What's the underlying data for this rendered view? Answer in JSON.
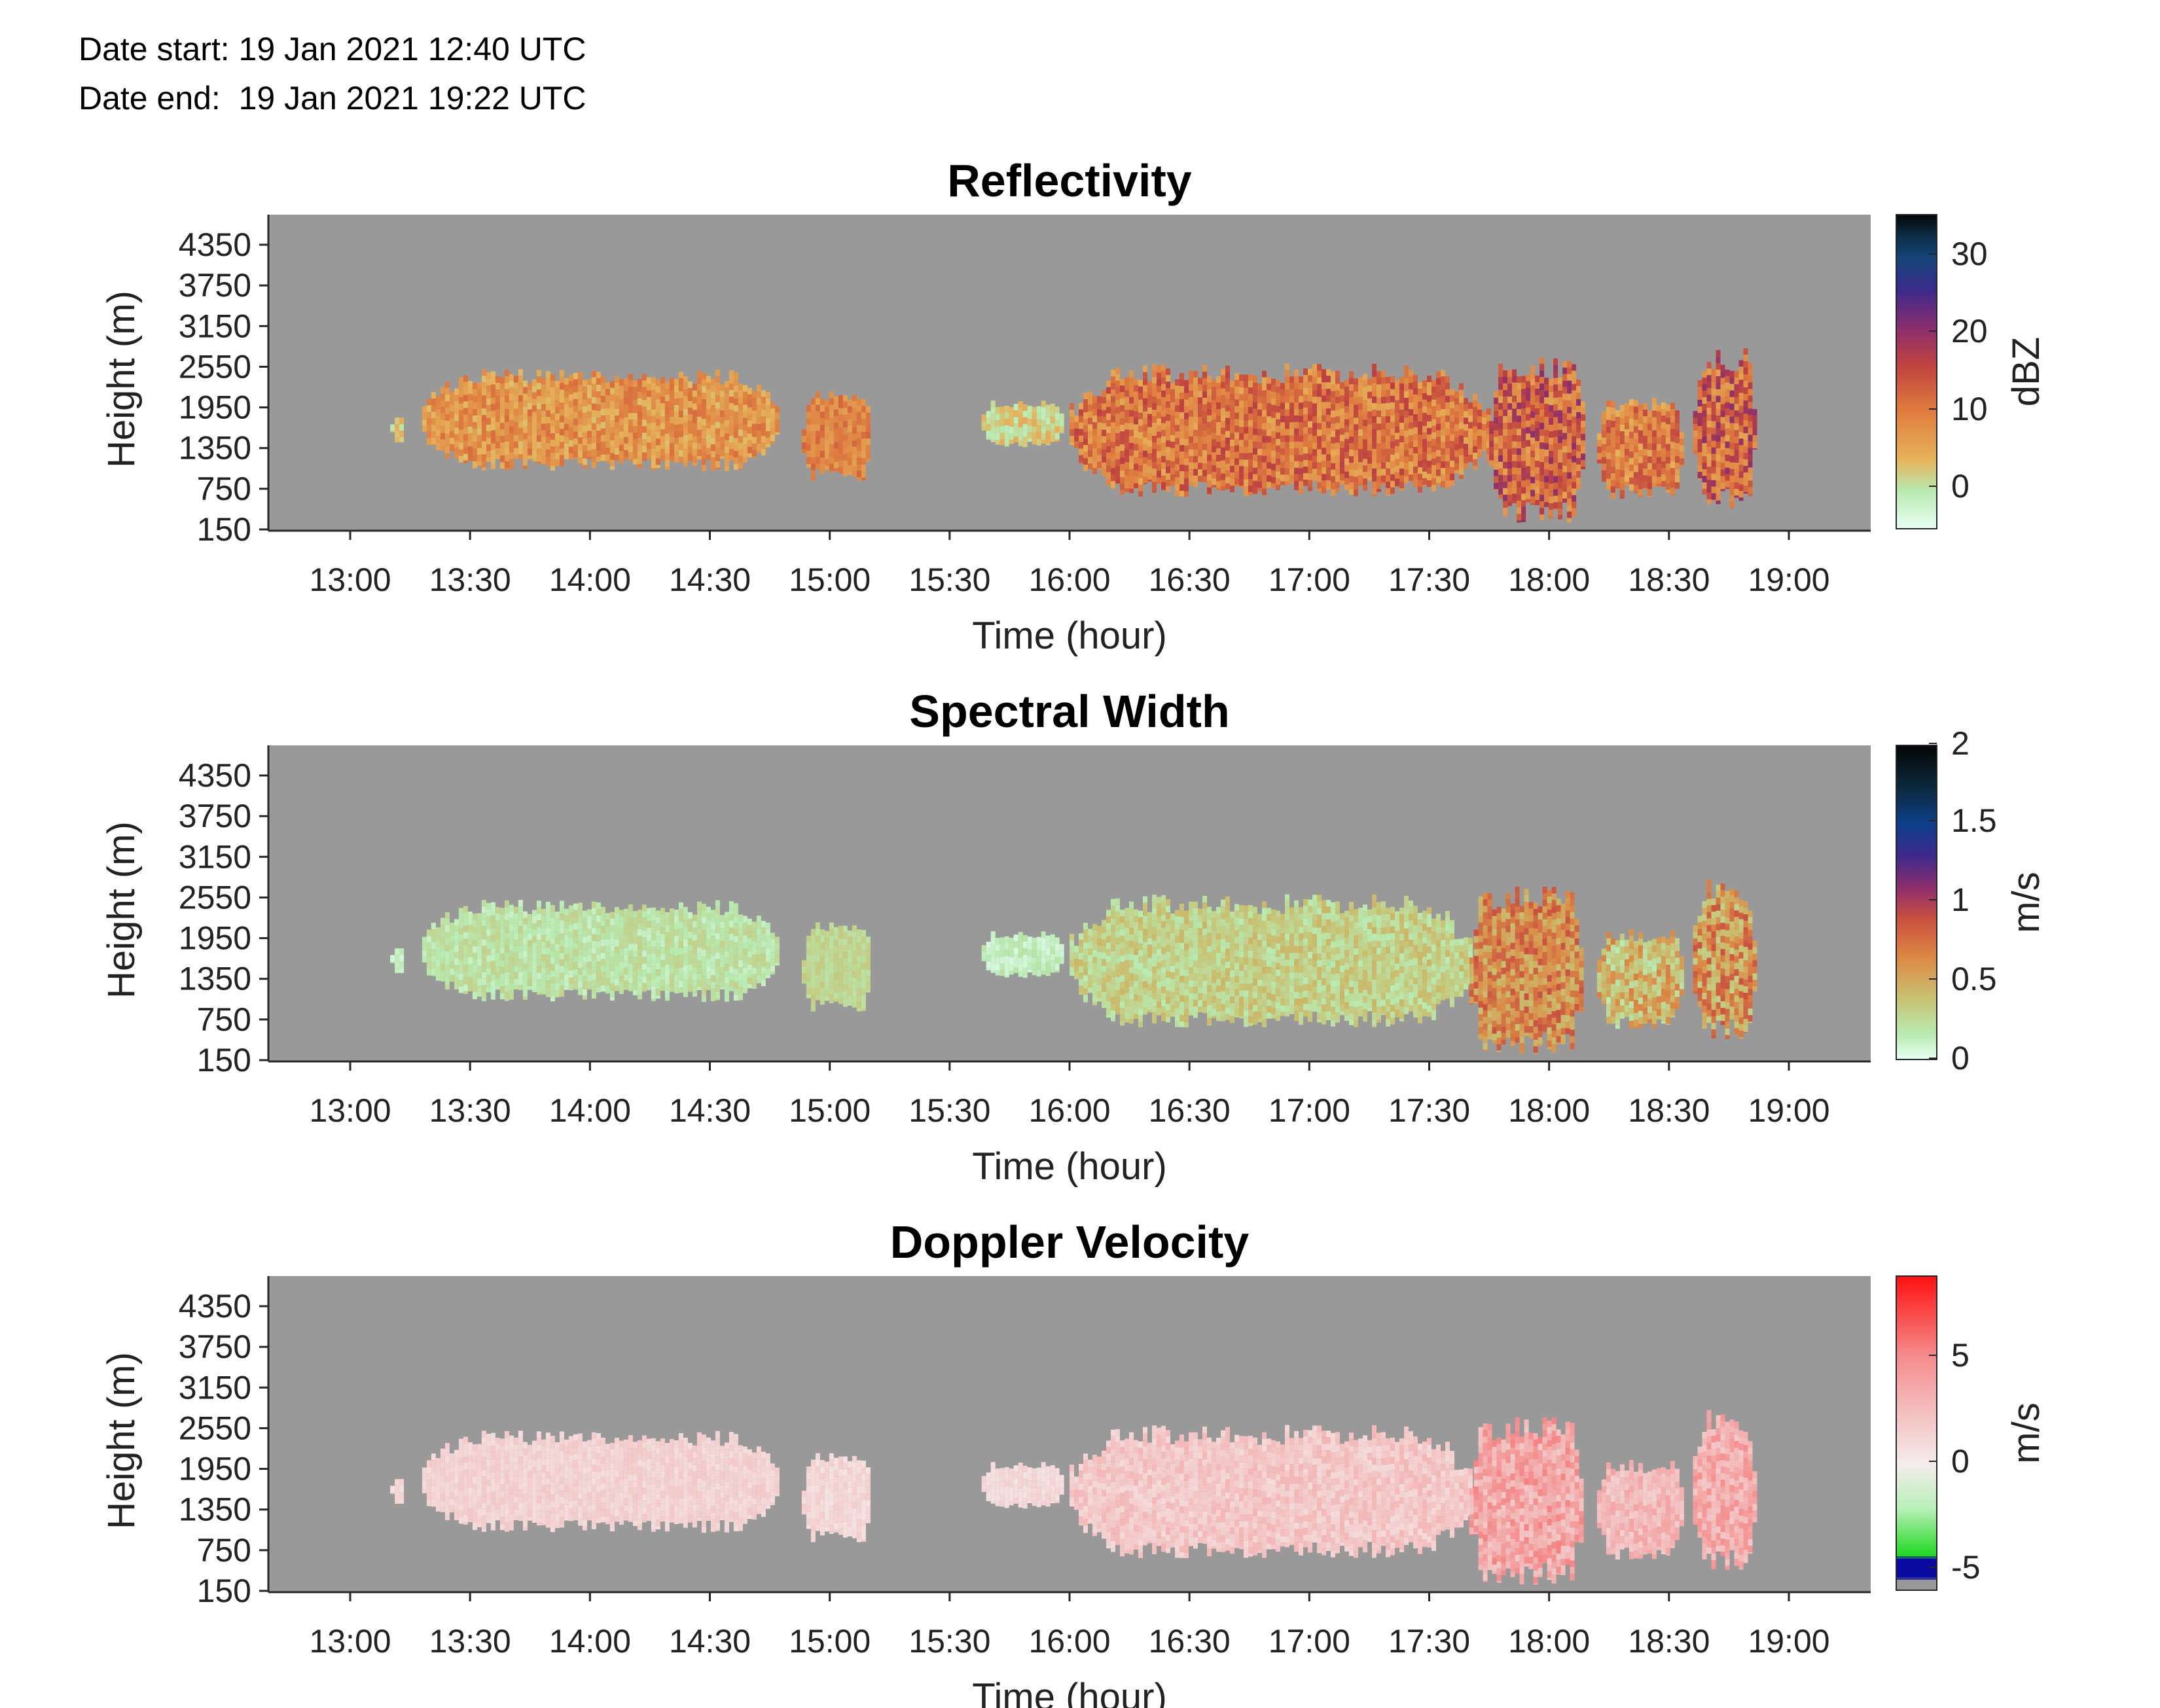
{
  "header": {
    "start_label": "Date start:",
    "start_value": "19 Jan 2021 12:40 UTC",
    "end_label": "Date end:",
    "end_value": "19 Jan 2021 19:22 UTC"
  },
  "colors": {
    "background_gray": "#999999",
    "axis_color": "#262626"
  },
  "chart_data": [
    {
      "type": "heatmap",
      "title": "Reflectivity",
      "xlabel": "Time (hour)",
      "ylabel": "Height (m)",
      "x_ticks": [
        "13:00",
        "13:30",
        "14:00",
        "14:30",
        "15:00",
        "15:30",
        "16:00",
        "16:30",
        "17:00",
        "17:30",
        "18:00",
        "18:30",
        "19:00"
      ],
      "y_ticks": [
        "150",
        "750",
        "1350",
        "1950",
        "2550",
        "3150",
        "3750",
        "4350"
      ],
      "colorbar": {
        "label": "dBZ",
        "ticks": [
          "0",
          "10",
          "20",
          "30"
        ],
        "tick_values": [
          0,
          10,
          20,
          30
        ],
        "range": [
          -6,
          35
        ],
        "colormap": "reflectivity"
      },
      "cloud_segments": [
        {
          "start": "13:10",
          "end": "13:13",
          "bottom": 1450,
          "top": 1800,
          "value_range": [
            -2,
            4
          ]
        },
        {
          "start": "13:18",
          "end": "14:47",
          "bottom": 1100,
          "top": 2400,
          "value_range": [
            2,
            11
          ]
        },
        {
          "start": "14:53",
          "end": "15:10",
          "bottom": 950,
          "top": 2100,
          "value_range": [
            5,
            12
          ]
        },
        {
          "start": "15:38",
          "end": "15:58",
          "bottom": 1400,
          "top": 2000,
          "value_range": [
            -2,
            4
          ]
        },
        {
          "start": "16:00",
          "end": "17:45",
          "bottom": 750,
          "top": 2450,
          "value_range": [
            4,
            16
          ]
        },
        {
          "start": "17:45",
          "end": "18:08",
          "bottom": 400,
          "top": 2550,
          "value_range": [
            5,
            20
          ]
        },
        {
          "start": "18:12",
          "end": "18:33",
          "bottom": 700,
          "top": 2000,
          "value_range": [
            3,
            15
          ]
        },
        {
          "start": "18:36",
          "end": "18:51",
          "bottom": 600,
          "top": 2650,
          "value_range": [
            5,
            20
          ]
        }
      ]
    },
    {
      "type": "heatmap",
      "title": "Spectral Width",
      "xlabel": "Time (hour)",
      "ylabel": "Height (m)",
      "x_ticks": [
        "13:00",
        "13:30",
        "14:00",
        "14:30",
        "15:00",
        "15:30",
        "16:00",
        "16:30",
        "17:00",
        "17:30",
        "18:00",
        "18:30",
        "19:00"
      ],
      "y_ticks": [
        "150",
        "750",
        "1350",
        "1950",
        "2550",
        "3150",
        "3750",
        "4350"
      ],
      "colorbar": {
        "label": "m/s",
        "ticks": [
          "0",
          "0.5",
          "1",
          "1.5",
          "2"
        ],
        "tick_values": [
          0,
          0.5,
          1,
          1.5,
          2
        ],
        "range": [
          0,
          2
        ],
        "colormap": "width"
      },
      "cloud_segments": [
        {
          "start": "13:10",
          "end": "13:13",
          "bottom": 1450,
          "top": 1800,
          "value_range": [
            0.05,
            0.15
          ]
        },
        {
          "start": "13:18",
          "end": "14:47",
          "bottom": 1100,
          "top": 2400,
          "value_range": [
            0.1,
            0.3
          ]
        },
        {
          "start": "14:53",
          "end": "15:10",
          "bottom": 950,
          "top": 2100,
          "value_range": [
            0.2,
            0.35
          ]
        },
        {
          "start": "15:38",
          "end": "15:58",
          "bottom": 1400,
          "top": 2000,
          "value_range": [
            0.05,
            0.2
          ]
        },
        {
          "start": "16:00",
          "end": "17:40",
          "bottom": 750,
          "top": 2450,
          "value_range": [
            0.15,
            0.45
          ]
        },
        {
          "start": "17:40",
          "end": "18:08",
          "bottom": 400,
          "top": 2550,
          "value_range": [
            0.4,
            0.9
          ]
        },
        {
          "start": "18:12",
          "end": "18:33",
          "bottom": 700,
          "top": 2000,
          "value_range": [
            0.15,
            0.7
          ]
        },
        {
          "start": "18:36",
          "end": "18:51",
          "bottom": 600,
          "top": 2650,
          "value_range": [
            0.3,
            0.9
          ]
        }
      ]
    },
    {
      "type": "heatmap",
      "title": "Doppler Velocity",
      "xlabel": "Time (hour)",
      "ylabel": "Height (m)",
      "x_ticks": [
        "13:00",
        "13:30",
        "14:00",
        "14:30",
        "15:00",
        "15:30",
        "16:00",
        "16:30",
        "17:00",
        "17:30",
        "18:00",
        "18:30",
        "19:00"
      ],
      "y_ticks": [
        "150",
        "750",
        "1350",
        "1950",
        "2550",
        "3150",
        "3750",
        "4350"
      ],
      "colorbar": {
        "label": "m/s",
        "ticks": [
          "-5",
          "0",
          "5"
        ],
        "tick_values": [
          -5,
          0,
          5
        ],
        "range": [
          -6,
          9
        ],
        "colormap": "velocity"
      },
      "cloud_segments": [
        {
          "start": "13:10",
          "end": "13:13",
          "bottom": 1450,
          "top": 1800,
          "value_range": [
            0.5,
            1.5
          ]
        },
        {
          "start": "13:18",
          "end": "14:47",
          "bottom": 1100,
          "top": 2400,
          "value_range": [
            0.8,
            2.0
          ]
        },
        {
          "start": "14:53",
          "end": "15:10",
          "bottom": 950,
          "top": 2100,
          "value_range": [
            0.5,
            1.8
          ]
        },
        {
          "start": "15:38",
          "end": "15:58",
          "bottom": 1400,
          "top": 2000,
          "value_range": [
            0.5,
            1.5
          ]
        },
        {
          "start": "16:00",
          "end": "17:40",
          "bottom": 750,
          "top": 2450,
          "value_range": [
            1.0,
            3.0
          ]
        },
        {
          "start": "17:40",
          "end": "18:08",
          "bottom": 400,
          "top": 2550,
          "value_range": [
            2.0,
            5.5
          ]
        },
        {
          "start": "18:12",
          "end": "18:33",
          "bottom": 700,
          "top": 2000,
          "value_range": [
            1.5,
            4.0
          ]
        },
        {
          "start": "18:36",
          "end": "18:51",
          "bottom": 600,
          "top": 2650,
          "value_range": [
            2.0,
            5.0
          ]
        }
      ]
    }
  ]
}
